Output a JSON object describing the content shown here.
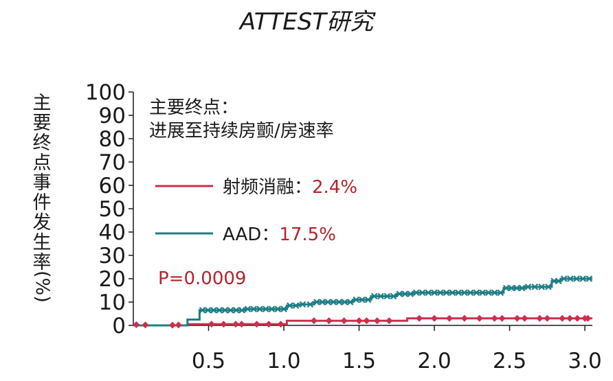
{
  "chart_data": {
    "type": "line",
    "title": "ATTEST研究",
    "ylabel": "主要终点事件发生率(%)",
    "ylim": [
      0,
      100
    ],
    "xlim": [
      0,
      3.05
    ],
    "y_ticks": [
      "0",
      "10",
      "20",
      "30",
      "40",
      "50",
      "60",
      "70",
      "80",
      "90",
      "100"
    ],
    "x_ticks": [
      "0.5",
      "1.0",
      "1.5",
      "2.0",
      "2.5",
      "3.0"
    ],
    "annotation": {
      "line1": "主要终点：",
      "line2": "进展至持续房颤/房速率"
    },
    "p_value": "P=0.0009",
    "legend_placement": "left",
    "series": [
      {
        "name": "射频消融",
        "pct": "2.4%",
        "color": "#cf2e4c",
        "marker": "diamond",
        "steps": [
          [
            0,
            0
          ],
          [
            0.36,
            0
          ],
          [
            0.36,
            0.5
          ],
          [
            1.02,
            0.5
          ],
          [
            1.02,
            2.0
          ],
          [
            1.82,
            2.0
          ],
          [
            1.82,
            3.0
          ],
          [
            3.05,
            3.0
          ]
        ],
        "censors": [
          [
            0.02,
            0.3
          ],
          [
            0.08,
            0.2
          ],
          [
            0.26,
            0.1
          ],
          [
            0.3,
            0.2
          ],
          [
            0.52,
            0.5
          ],
          [
            0.6,
            0.5
          ],
          [
            0.68,
            0.5
          ],
          [
            0.72,
            0.5
          ],
          [
            0.82,
            0.5
          ],
          [
            0.9,
            0.5
          ],
          [
            0.98,
            0.5
          ],
          [
            1.2,
            2.0
          ],
          [
            1.3,
            2.0
          ],
          [
            1.4,
            2.0
          ],
          [
            1.5,
            2.0
          ],
          [
            1.55,
            2.0
          ],
          [
            1.62,
            2.0
          ],
          [
            1.7,
            2.0
          ],
          [
            1.9,
            3.0
          ],
          [
            2.0,
            3.0
          ],
          [
            2.1,
            3.0
          ],
          [
            2.2,
            3.0
          ],
          [
            2.3,
            3.0
          ],
          [
            2.4,
            3.0
          ],
          [
            2.45,
            3.0
          ],
          [
            2.55,
            3.0
          ],
          [
            2.6,
            3.0
          ],
          [
            2.7,
            3.0
          ],
          [
            2.75,
            3.0
          ],
          [
            2.85,
            3.0
          ],
          [
            2.9,
            3.0
          ],
          [
            2.95,
            3.0
          ],
          [
            3.0,
            3.0
          ],
          [
            3.02,
            3.0
          ]
        ]
      },
      {
        "name": "AAD",
        "pct": "17.5%",
        "color": "#1e7e85",
        "marker": "cross",
        "steps": [
          [
            0,
            0
          ],
          [
            0.36,
            0
          ],
          [
            0.36,
            2.5
          ],
          [
            0.44,
            2.5
          ],
          [
            0.44,
            6.5
          ],
          [
            0.74,
            6.5
          ],
          [
            0.74,
            7.0
          ],
          [
            1.02,
            7.0
          ],
          [
            1.02,
            8.5
          ],
          [
            1.1,
            8.5
          ],
          [
            1.1,
            9.0
          ],
          [
            1.2,
            9.0
          ],
          [
            1.2,
            10.0
          ],
          [
            1.46,
            10.0
          ],
          [
            1.46,
            11.0
          ],
          [
            1.58,
            11.0
          ],
          [
            1.58,
            12.5
          ],
          [
            1.75,
            12.5
          ],
          [
            1.75,
            13.5
          ],
          [
            1.86,
            13.5
          ],
          [
            1.86,
            14.0
          ],
          [
            2.46,
            14.0
          ],
          [
            2.46,
            16.0
          ],
          [
            2.6,
            16.0
          ],
          [
            2.6,
            16.5
          ],
          [
            2.78,
            16.5
          ],
          [
            2.78,
            19.0
          ],
          [
            2.84,
            19.0
          ],
          [
            2.84,
            20.0
          ],
          [
            3.05,
            20.0
          ]
        ]
      }
    ]
  }
}
